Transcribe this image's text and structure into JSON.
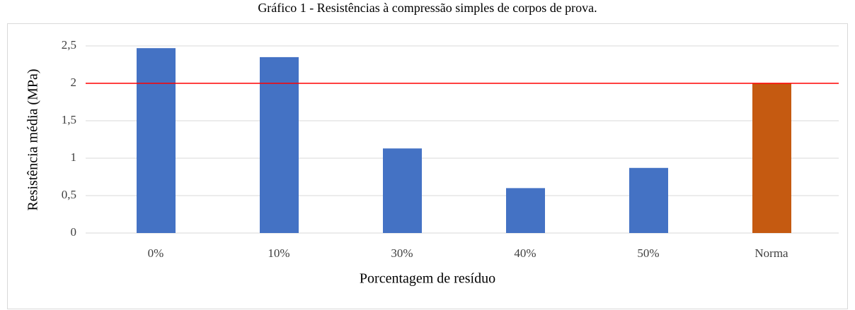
{
  "chart_data": {
    "type": "bar",
    "title": "Gráfico 1 - Resistências à compressão simples de corpos de prova.",
    "xlabel": "Porcentagem de resíduo",
    "ylabel": "Resistência média (MPa)",
    "categories": [
      "0%",
      "10%",
      "30%",
      "40%",
      "50%",
      "Norma"
    ],
    "values": [
      2.47,
      2.35,
      1.13,
      0.6,
      0.87,
      2.0
    ],
    "colors": [
      "#4472c4",
      "#4472c4",
      "#4472c4",
      "#4472c4",
      "#4472c4",
      "#c55a11"
    ],
    "ylim": [
      0,
      2.5
    ],
    "yticks": [
      0,
      {
        "value": 0.5,
        "label": "0,5"
      },
      1,
      {
        "value": 1.5,
        "label": "1,5"
      },
      2,
      {
        "value": 2.5,
        "label": "2,5"
      }
    ],
    "grid": true,
    "reference_line": {
      "value": 2,
      "color": "#ff0000"
    }
  }
}
